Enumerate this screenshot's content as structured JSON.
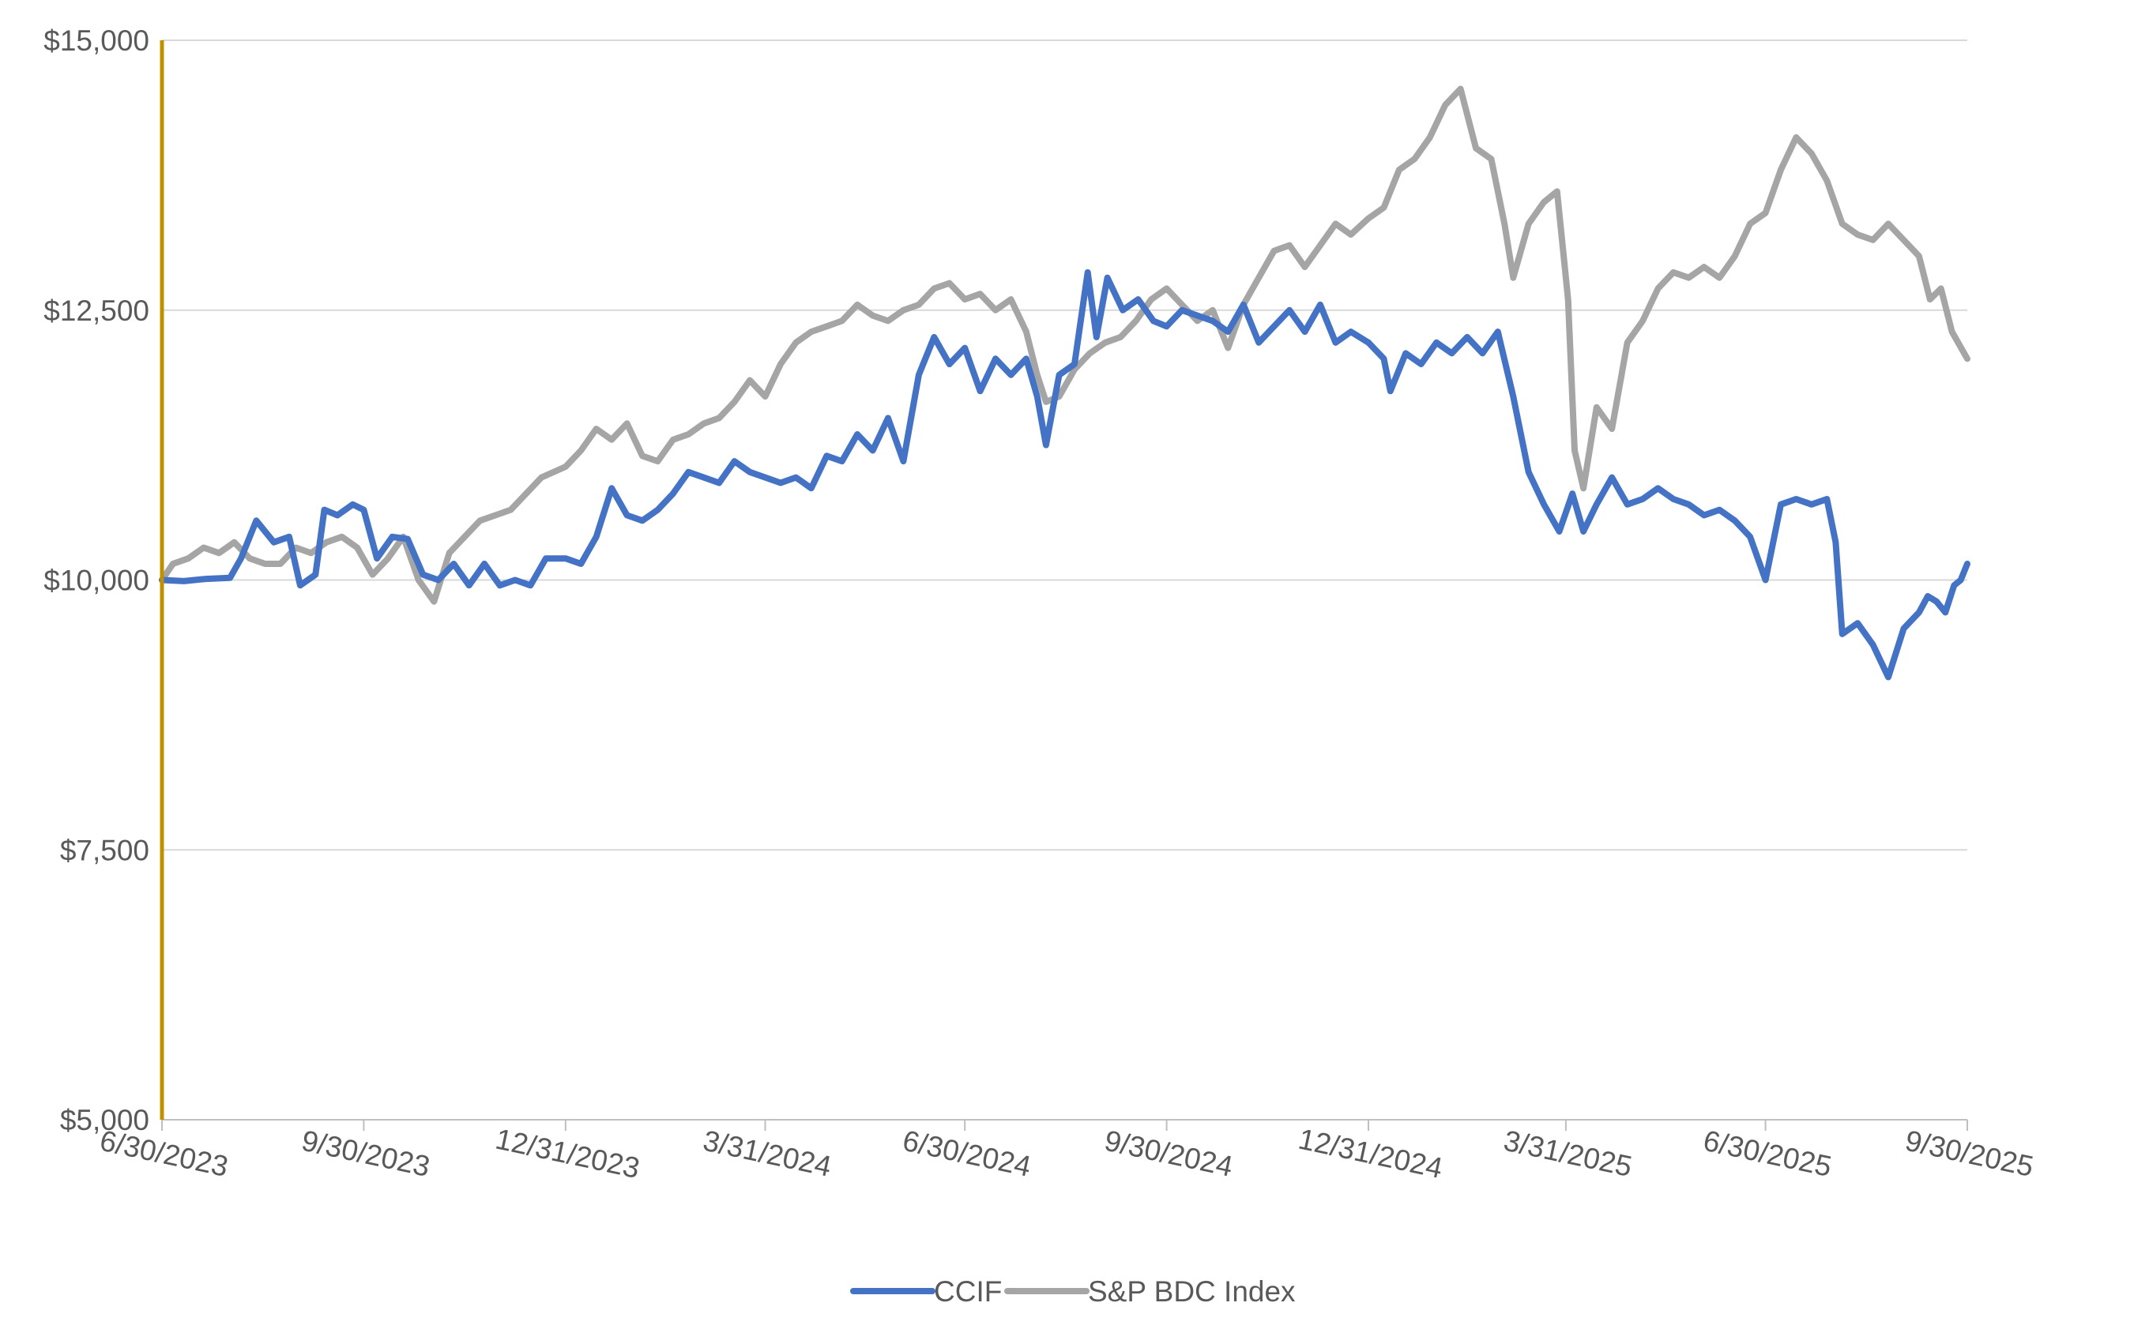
{
  "colors": {
    "ccif": "#4472C4",
    "bdc": "#A5A5A5",
    "start_marker": "#BF9000",
    "gridline": "#D9D9D9",
    "axis": "#BFBFBF",
    "text": "#595959"
  },
  "legend": {
    "items": [
      {
        "label": "CCIF",
        "color": "#4472C4"
      },
      {
        "label": "S&P BDC Index",
        "color": "#A5A5A5"
      }
    ],
    "position": "bottom-center"
  },
  "chart_data": {
    "type": "line",
    "title": "",
    "xlabel": "",
    "ylabel": "",
    "x_type": "date",
    "x_range": [
      "2023-06-30",
      "2025-09-30"
    ],
    "ylim": [
      5000,
      15000
    ],
    "grid": true,
    "y_ticks": [
      {
        "value": 5000,
        "label": "$5,000"
      },
      {
        "value": 7500,
        "label": "$7,500"
      },
      {
        "value": 10000,
        "label": "$10,000"
      },
      {
        "value": 12500,
        "label": "$12,500"
      },
      {
        "value": 15000,
        "label": "$15,000"
      }
    ],
    "x_ticks": [
      {
        "date": "2023-06-30",
        "label": "6/30/2023"
      },
      {
        "date": "2023-09-30",
        "label": "9/30/2023"
      },
      {
        "date": "2023-12-31",
        "label": "12/31/2023"
      },
      {
        "date": "2024-03-31",
        "label": "3/31/2024"
      },
      {
        "date": "2024-06-30",
        "label": "6/30/2024"
      },
      {
        "date": "2024-09-30",
        "label": "9/30/2024"
      },
      {
        "date": "2024-12-31",
        "label": "12/31/2024"
      },
      {
        "date": "2025-03-31",
        "label": "3/31/2025"
      },
      {
        "date": "2025-06-30",
        "label": "6/30/2025"
      },
      {
        "date": "2025-09-30",
        "label": "9/30/2025"
      }
    ],
    "start_marker": {
      "date": "2023-06-30"
    },
    "series": [
      {
        "name": "CCIF",
        "color": "#4472C4",
        "points": [
          [
            "2023-06-30",
            10000
          ],
          [
            "2023-07-10",
            9990
          ],
          [
            "2023-07-20",
            10010
          ],
          [
            "2023-07-31",
            10020
          ],
          [
            "2023-08-05",
            10200
          ],
          [
            "2023-08-12",
            10550
          ],
          [
            "2023-08-20",
            10350
          ],
          [
            "2023-08-27",
            10400
          ],
          [
            "2023-09-01",
            9950
          ],
          [
            "2023-09-08",
            10050
          ],
          [
            "2023-09-12",
            10650
          ],
          [
            "2023-09-18",
            10600
          ],
          [
            "2023-09-25",
            10700
          ],
          [
            "2023-09-30",
            10650
          ],
          [
            "2023-10-06",
            10200
          ],
          [
            "2023-10-13",
            10400
          ],
          [
            "2023-10-20",
            10380
          ],
          [
            "2023-10-27",
            10050
          ],
          [
            "2023-11-03",
            10000
          ],
          [
            "2023-11-10",
            10150
          ],
          [
            "2023-11-17",
            9950
          ],
          [
            "2023-11-24",
            10150
          ],
          [
            "2023-12-01",
            9950
          ],
          [
            "2023-12-08",
            10000
          ],
          [
            "2023-12-15",
            9950
          ],
          [
            "2023-12-22",
            10200
          ],
          [
            "2023-12-31",
            10200
          ],
          [
            "2024-01-07",
            10150
          ],
          [
            "2024-01-14",
            10400
          ],
          [
            "2024-01-21",
            10850
          ],
          [
            "2024-01-28",
            10600
          ],
          [
            "2024-02-04",
            10550
          ],
          [
            "2024-02-11",
            10650
          ],
          [
            "2024-02-18",
            10800
          ],
          [
            "2024-02-25",
            11000
          ],
          [
            "2024-03-03",
            10950
          ],
          [
            "2024-03-10",
            10900
          ],
          [
            "2024-03-17",
            11100
          ],
          [
            "2024-03-24",
            11000
          ],
          [
            "2024-03-31",
            10950
          ],
          [
            "2024-04-07",
            10900
          ],
          [
            "2024-04-14",
            10950
          ],
          [
            "2024-04-21",
            10850
          ],
          [
            "2024-04-28",
            11150
          ],
          [
            "2024-05-05",
            11100
          ],
          [
            "2024-05-12",
            11350
          ],
          [
            "2024-05-19",
            11200
          ],
          [
            "2024-05-26",
            11500
          ],
          [
            "2024-06-02",
            11100
          ],
          [
            "2024-06-09",
            11900
          ],
          [
            "2024-06-16",
            12250
          ],
          [
            "2024-06-23",
            12000
          ],
          [
            "2024-06-30",
            12150
          ],
          [
            "2024-07-07",
            11750
          ],
          [
            "2024-07-14",
            12050
          ],
          [
            "2024-07-21",
            11900
          ],
          [
            "2024-07-28",
            12050
          ],
          [
            "2024-08-02",
            11700
          ],
          [
            "2024-08-06",
            11250
          ],
          [
            "2024-08-12",
            11900
          ],
          [
            "2024-08-19",
            12000
          ],
          [
            "2024-08-25",
            12850
          ],
          [
            "2024-08-29",
            12250
          ],
          [
            "2024-09-03",
            12800
          ],
          [
            "2024-09-10",
            12500
          ],
          [
            "2024-09-17",
            12600
          ],
          [
            "2024-09-24",
            12400
          ],
          [
            "2024-09-30",
            12350
          ],
          [
            "2024-10-07",
            12500
          ],
          [
            "2024-10-14",
            12450
          ],
          [
            "2024-10-21",
            12400
          ],
          [
            "2024-10-28",
            12300
          ],
          [
            "2024-11-04",
            12550
          ],
          [
            "2024-11-11",
            12200
          ],
          [
            "2024-11-18",
            12350
          ],
          [
            "2024-11-25",
            12500
          ],
          [
            "2024-12-02",
            12300
          ],
          [
            "2024-12-09",
            12550
          ],
          [
            "2024-12-16",
            12200
          ],
          [
            "2024-12-23",
            12300
          ],
          [
            "2024-12-31",
            12200
          ],
          [
            "2025-01-07",
            12050
          ],
          [
            "2025-01-10",
            11750
          ],
          [
            "2025-01-17",
            12100
          ],
          [
            "2025-01-24",
            12000
          ],
          [
            "2025-01-31",
            12200
          ],
          [
            "2025-02-07",
            12100
          ],
          [
            "2025-02-14",
            12250
          ],
          [
            "2025-02-21",
            12100
          ],
          [
            "2025-02-28",
            12300
          ],
          [
            "2025-03-07",
            11700
          ],
          [
            "2025-03-14",
            11000
          ],
          [
            "2025-03-21",
            10700
          ],
          [
            "2025-03-28",
            10450
          ],
          [
            "2025-04-03",
            10800
          ],
          [
            "2025-04-08",
            10450
          ],
          [
            "2025-04-14",
            10700
          ],
          [
            "2025-04-21",
            10950
          ],
          [
            "2025-04-28",
            10700
          ],
          [
            "2025-05-05",
            10750
          ],
          [
            "2025-05-12",
            10850
          ],
          [
            "2025-05-19",
            10750
          ],
          [
            "2025-05-26",
            10700
          ],
          [
            "2025-06-02",
            10600
          ],
          [
            "2025-06-09",
            10650
          ],
          [
            "2025-06-16",
            10550
          ],
          [
            "2025-06-23",
            10400
          ],
          [
            "2025-06-30",
            10000
          ],
          [
            "2025-07-07",
            10700
          ],
          [
            "2025-07-14",
            10750
          ],
          [
            "2025-07-21",
            10700
          ],
          [
            "2025-07-28",
            10750
          ],
          [
            "2025-08-01",
            10350
          ],
          [
            "2025-08-04",
            9500
          ],
          [
            "2025-08-11",
            9600
          ],
          [
            "2025-08-18",
            9400
          ],
          [
            "2025-08-25",
            9100
          ],
          [
            "2025-09-01",
            9550
          ],
          [
            "2025-09-08",
            9700
          ],
          [
            "2025-09-12",
            9850
          ],
          [
            "2025-09-16",
            9800
          ],
          [
            "2025-09-20",
            9700
          ],
          [
            "2025-09-24",
            9950
          ],
          [
            "2025-09-27",
            10000
          ],
          [
            "2025-09-30",
            10150
          ]
        ]
      },
      {
        "name": "S&P BDC Index",
        "color": "#A5A5A5",
        "points": [
          [
            "2023-06-30",
            10000
          ],
          [
            "2023-07-05",
            10150
          ],
          [
            "2023-07-12",
            10200
          ],
          [
            "2023-07-19",
            10300
          ],
          [
            "2023-07-26",
            10250
          ],
          [
            "2023-08-02",
            10350
          ],
          [
            "2023-08-09",
            10200
          ],
          [
            "2023-08-16",
            10150
          ],
          [
            "2023-08-23",
            10150
          ],
          [
            "2023-08-30",
            10300
          ],
          [
            "2023-09-06",
            10250
          ],
          [
            "2023-09-13",
            10350
          ],
          [
            "2023-09-20",
            10400
          ],
          [
            "2023-09-27",
            10300
          ],
          [
            "2023-10-04",
            10050
          ],
          [
            "2023-10-11",
            10200
          ],
          [
            "2023-10-18",
            10400
          ],
          [
            "2023-10-25",
            10000
          ],
          [
            "2023-11-01",
            9800
          ],
          [
            "2023-11-08",
            10250
          ],
          [
            "2023-11-15",
            10400
          ],
          [
            "2023-11-22",
            10550
          ],
          [
            "2023-11-29",
            10600
          ],
          [
            "2023-12-06",
            10650
          ],
          [
            "2023-12-13",
            10800
          ],
          [
            "2023-12-20",
            10950
          ],
          [
            "2023-12-31",
            11050
          ],
          [
            "2024-01-07",
            11200
          ],
          [
            "2024-01-14",
            11400
          ],
          [
            "2024-01-21",
            11300
          ],
          [
            "2024-01-28",
            11450
          ],
          [
            "2024-02-04",
            11150
          ],
          [
            "2024-02-11",
            11100
          ],
          [
            "2024-02-18",
            11300
          ],
          [
            "2024-02-25",
            11350
          ],
          [
            "2024-03-03",
            11450
          ],
          [
            "2024-03-10",
            11500
          ],
          [
            "2024-03-17",
            11650
          ],
          [
            "2024-03-24",
            11850
          ],
          [
            "2024-03-31",
            11700
          ],
          [
            "2024-04-07",
            12000
          ],
          [
            "2024-04-14",
            12200
          ],
          [
            "2024-04-21",
            12300
          ],
          [
            "2024-04-28",
            12350
          ],
          [
            "2024-05-05",
            12400
          ],
          [
            "2024-05-12",
            12550
          ],
          [
            "2024-05-19",
            12450
          ],
          [
            "2024-05-26",
            12400
          ],
          [
            "2024-06-02",
            12500
          ],
          [
            "2024-06-09",
            12550
          ],
          [
            "2024-06-16",
            12700
          ],
          [
            "2024-06-23",
            12750
          ],
          [
            "2024-06-30",
            12600
          ],
          [
            "2024-07-07",
            12650
          ],
          [
            "2024-07-14",
            12500
          ],
          [
            "2024-07-21",
            12600
          ],
          [
            "2024-07-28",
            12300
          ],
          [
            "2024-08-02",
            11900
          ],
          [
            "2024-08-06",
            11650
          ],
          [
            "2024-08-12",
            11700
          ],
          [
            "2024-08-19",
            11950
          ],
          [
            "2024-08-26",
            12100
          ],
          [
            "2024-09-02",
            12200
          ],
          [
            "2024-09-09",
            12250
          ],
          [
            "2024-09-16",
            12400
          ],
          [
            "2024-09-23",
            12600
          ],
          [
            "2024-09-30",
            12700
          ],
          [
            "2024-10-07",
            12550
          ],
          [
            "2024-10-14",
            12400
          ],
          [
            "2024-10-21",
            12500
          ],
          [
            "2024-10-28",
            12150
          ],
          [
            "2024-11-04",
            12550
          ],
          [
            "2024-11-11",
            12800
          ],
          [
            "2024-11-18",
            13050
          ],
          [
            "2024-11-25",
            13100
          ],
          [
            "2024-12-02",
            12900
          ],
          [
            "2024-12-09",
            13100
          ],
          [
            "2024-12-16",
            13300
          ],
          [
            "2024-12-23",
            13200
          ],
          [
            "2024-12-31",
            13350
          ],
          [
            "2025-01-07",
            13450
          ],
          [
            "2025-01-14",
            13800
          ],
          [
            "2025-01-21",
            13900
          ],
          [
            "2025-01-28",
            14100
          ],
          [
            "2025-02-04",
            14400
          ],
          [
            "2025-02-11",
            14550
          ],
          [
            "2025-02-18",
            14000
          ],
          [
            "2025-02-25",
            13900
          ],
          [
            "2025-03-03",
            13300
          ],
          [
            "2025-03-07",
            12800
          ],
          [
            "2025-03-14",
            13300
          ],
          [
            "2025-03-21",
            13500
          ],
          [
            "2025-03-27",
            13600
          ],
          [
            "2025-04-01",
            12600
          ],
          [
            "2025-04-04",
            11200
          ],
          [
            "2025-04-08",
            10850
          ],
          [
            "2025-04-14",
            11600
          ],
          [
            "2025-04-21",
            11400
          ],
          [
            "2025-04-28",
            12200
          ],
          [
            "2025-05-05",
            12400
          ],
          [
            "2025-05-12",
            12700
          ],
          [
            "2025-05-19",
            12850
          ],
          [
            "2025-05-26",
            12800
          ],
          [
            "2025-06-02",
            12900
          ],
          [
            "2025-06-09",
            12800
          ],
          [
            "2025-06-16",
            13000
          ],
          [
            "2025-06-23",
            13300
          ],
          [
            "2025-06-30",
            13400
          ],
          [
            "2025-07-07",
            13800
          ],
          [
            "2025-07-14",
            14100
          ],
          [
            "2025-07-21",
            13950
          ],
          [
            "2025-07-28",
            13700
          ],
          [
            "2025-08-04",
            13300
          ],
          [
            "2025-08-11",
            13200
          ],
          [
            "2025-08-18",
            13150
          ],
          [
            "2025-08-25",
            13300
          ],
          [
            "2025-09-01",
            13150
          ],
          [
            "2025-09-08",
            13000
          ],
          [
            "2025-09-13",
            12600
          ],
          [
            "2025-09-18",
            12700
          ],
          [
            "2025-09-23",
            12300
          ],
          [
            "2025-09-30",
            12050
          ]
        ]
      }
    ]
  }
}
